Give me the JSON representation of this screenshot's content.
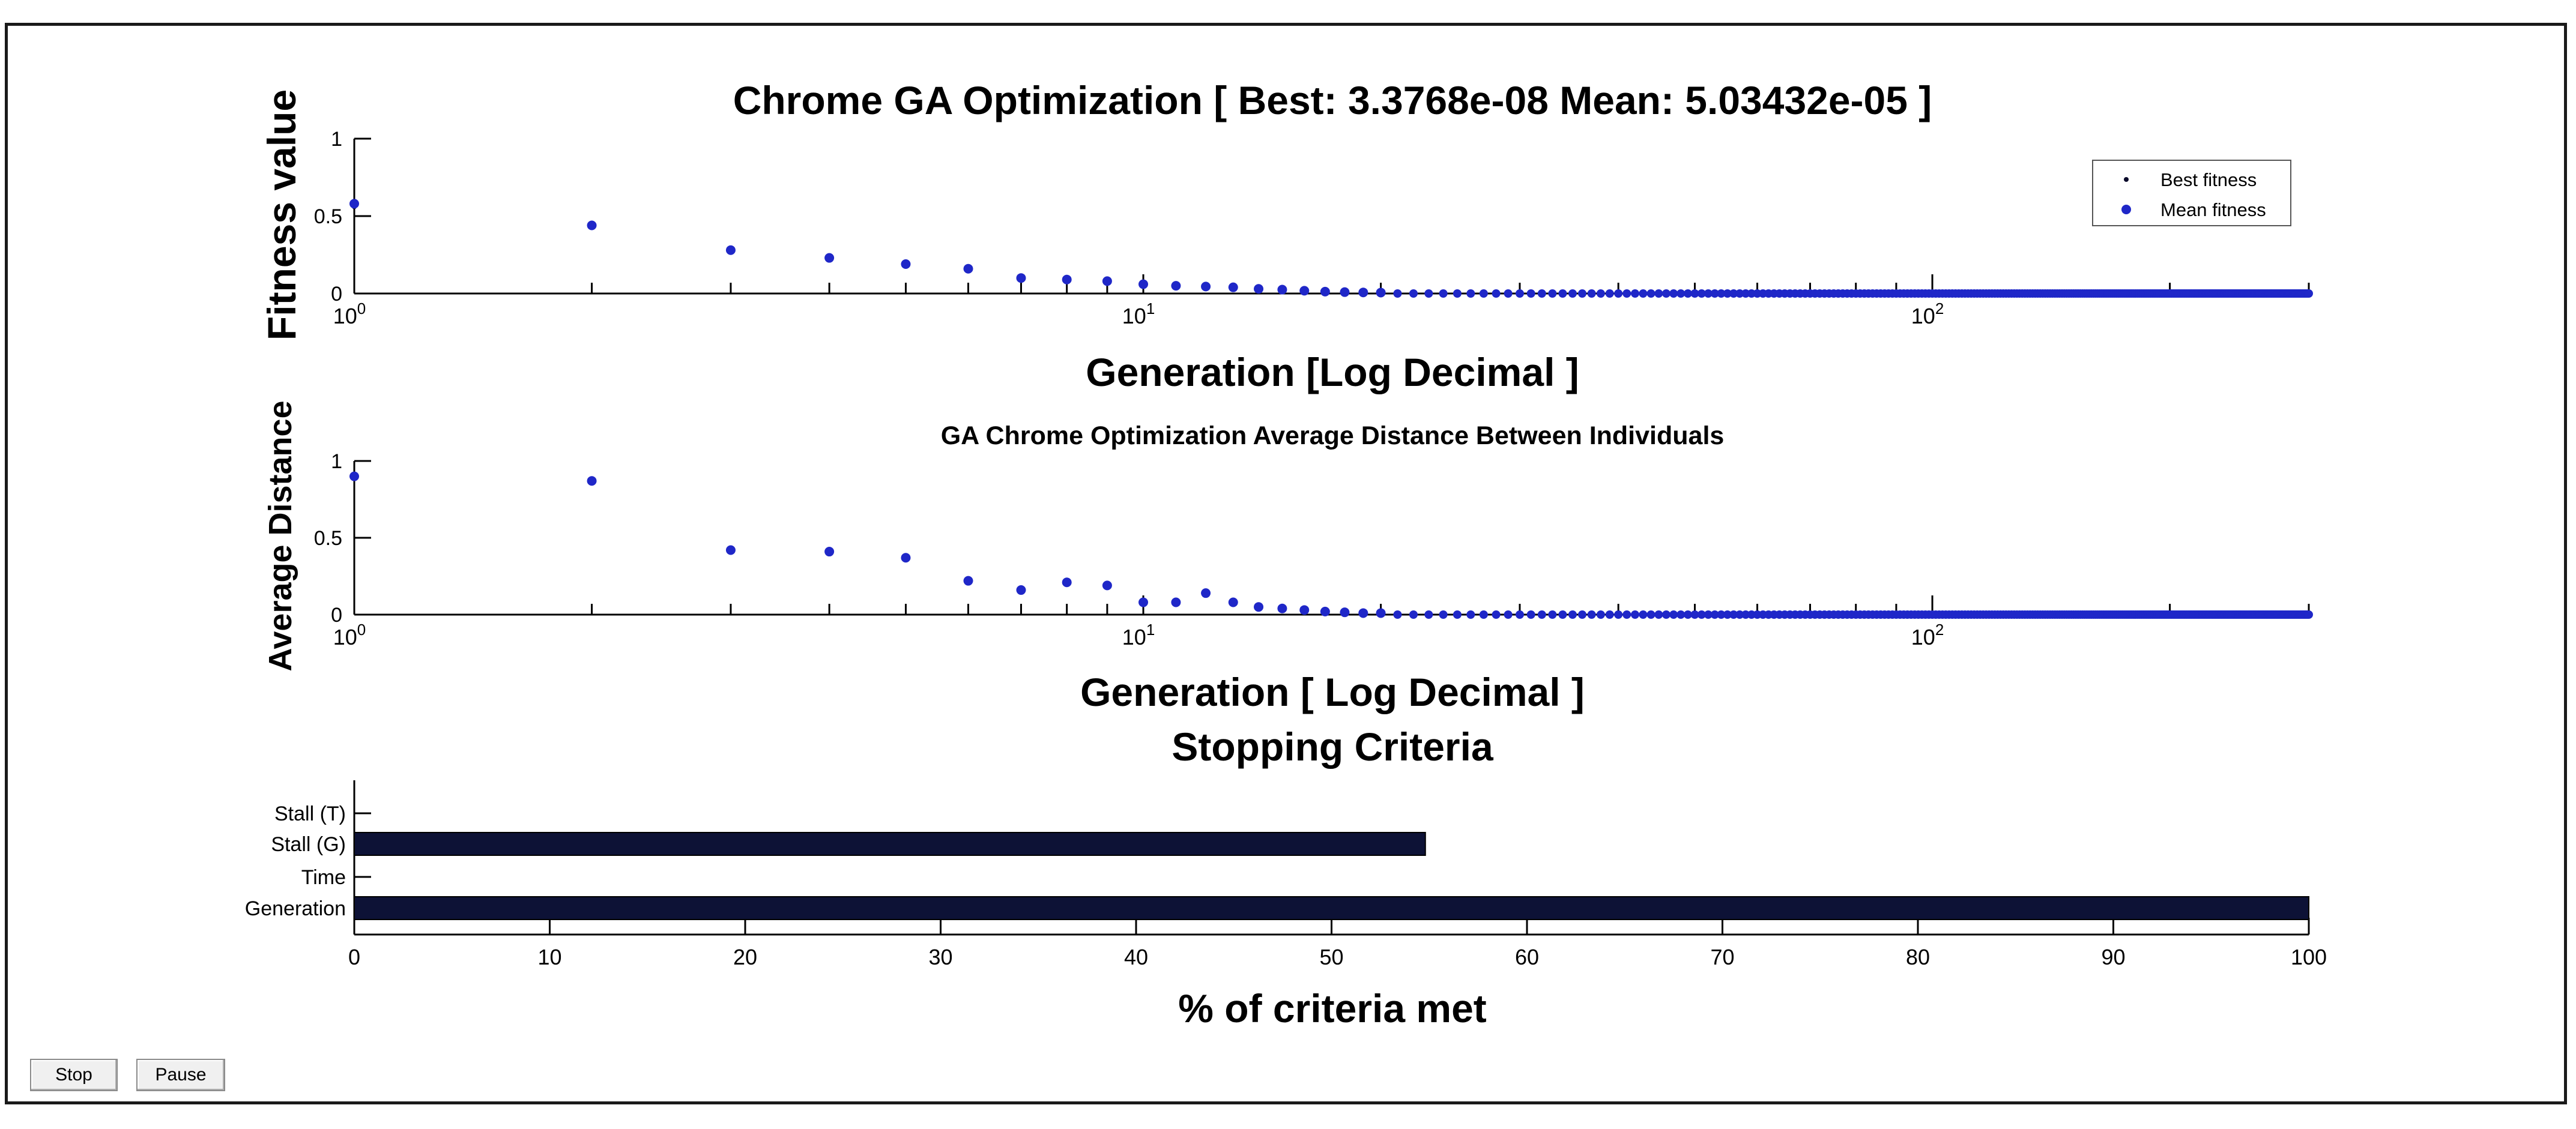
{
  "buttons": {
    "stop_label": "Stop",
    "pause_label": "Pause"
  },
  "colors": {
    "mean": "#1f27c8",
    "best": "#0a0a2a",
    "bar_fill": "#0d1236",
    "axis": "#000000"
  },
  "chart_data": [
    {
      "id": "fitness",
      "type": "scatter",
      "title": "Chrome GA Optimization [ Best: 3.3768e-08 Mean: 5.03432e-05 ]",
      "xlabel": "Generation [Log Decimal ]",
      "ylabel": "Fitness value",
      "xscale": "log",
      "xlim": [
        1,
        300
      ],
      "ylim": [
        0,
        1
      ],
      "yticks": [
        "0",
        "0.5",
        "1"
      ],
      "xtick_labels": [
        {
          "base": "10",
          "exp": "0"
        },
        {
          "base": "10",
          "exp": "1"
        },
        {
          "base": "10",
          "exp": "2"
        }
      ],
      "legend": {
        "position": "top-right",
        "entries": [
          "Best fitness",
          "Mean fitness"
        ]
      },
      "series": [
        {
          "name": "Best fitness",
          "x": [
            1,
            2,
            3,
            4,
            5,
            6,
            7,
            8,
            9,
            10,
            11,
            12,
            13,
            14,
            15,
            16,
            17,
            18,
            19,
            20
          ],
          "y": [
            0.56,
            0.43,
            0.27,
            0.22,
            0.18,
            0.15,
            0.1,
            0.09,
            0.07,
            0.06,
            0.05,
            0.04,
            0.04,
            0.03,
            0.02,
            0.015,
            0.01,
            0.008,
            0.006,
            0.005
          ]
        },
        {
          "name": "Mean fitness",
          "x": [
            1,
            2,
            3,
            4,
            5,
            6,
            7,
            8,
            9,
            10,
            11,
            12,
            13,
            14,
            15,
            16,
            17,
            18,
            19,
            20
          ],
          "y": [
            0.58,
            0.44,
            0.28,
            0.23,
            0.19,
            0.16,
            0.1,
            0.09,
            0.08,
            0.06,
            0.05,
            0.045,
            0.04,
            0.03,
            0.025,
            0.018,
            0.012,
            0.009,
            0.007,
            0.006
          ]
        }
      ]
    },
    {
      "id": "distance",
      "type": "scatter",
      "title": "GA Chrome Optimization Average Distance Between Individuals",
      "xlabel": "Generation [ Log Decimal ]",
      "ylabel": "Average Distance",
      "xscale": "log",
      "xlim": [
        1,
        300
      ],
      "ylim": [
        0,
        1
      ],
      "yticks": [
        "0",
        "0.5",
        "1"
      ],
      "xtick_labels": [
        {
          "base": "10",
          "exp": "0"
        },
        {
          "base": "10",
          "exp": "1"
        },
        {
          "base": "10",
          "exp": "2"
        }
      ],
      "series": [
        {
          "name": "Average distance",
          "x": [
            1,
            2,
            3,
            4,
            5,
            6,
            7,
            8,
            9,
            10,
            11,
            12,
            13,
            14,
            15,
            16,
            17,
            18,
            19,
            20
          ],
          "y": [
            0.9,
            0.87,
            0.42,
            0.41,
            0.37,
            0.22,
            0.16,
            0.21,
            0.19,
            0.08,
            0.08,
            0.14,
            0.08,
            0.05,
            0.04,
            0.03,
            0.02,
            0.015,
            0.01,
            0.01
          ]
        }
      ]
    },
    {
      "id": "stopping",
      "type": "bar",
      "orientation": "horizontal",
      "title": "Stopping Criteria",
      "xlabel": "% of criteria met",
      "xlim": [
        0,
        100
      ],
      "xticks": [
        "0",
        "10",
        "20",
        "30",
        "40",
        "50",
        "60",
        "70",
        "80",
        "90",
        "100"
      ],
      "categories": [
        "Stall (T)",
        "Stall (G)",
        "Time",
        "Generation"
      ],
      "values": [
        0,
        54.8,
        0,
        100
      ]
    }
  ]
}
